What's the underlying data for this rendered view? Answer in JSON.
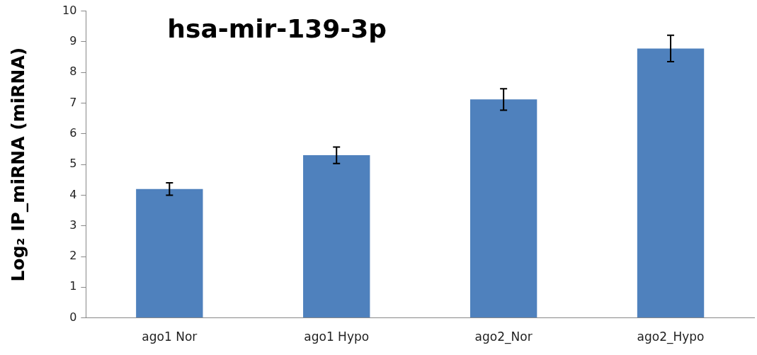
{
  "chart_data": {
    "type": "bar",
    "title": "hsa-mir-139-3p",
    "ylabel": "Log₂ IP_miRNA (miRNA)",
    "categories": [
      "ago1 Nor",
      "ago1 Hypo",
      "ago2_Nor",
      "ago2_Hypo"
    ],
    "values": [
      4.2,
      5.3,
      7.12,
      8.78
    ],
    "errors": [
      0.2,
      0.27,
      0.35,
      0.43
    ],
    "color": "#4f81bd",
    "ylim": [
      0,
      10
    ],
    "yticks": [
      0,
      1,
      2,
      3,
      4,
      5,
      6,
      7,
      8,
      9,
      10
    ],
    "grid": false,
    "legend": false
  }
}
